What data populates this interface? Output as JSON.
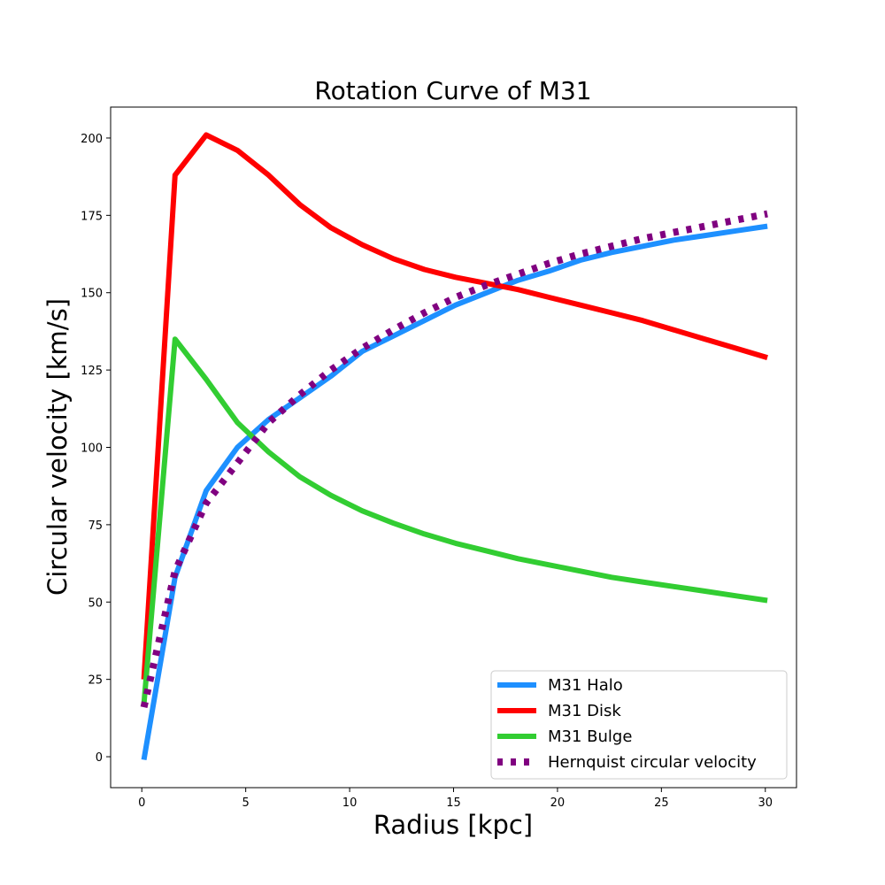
{
  "chart_data": {
    "type": "line",
    "title": "Rotation Curve of M31",
    "xlabel": "Radius [kpc]",
    "ylabel": "Circular velocity [km/s]",
    "xlim": [
      -1.5,
      31.5
    ],
    "ylim": [
      -10,
      210
    ],
    "xticks": [
      0,
      5,
      10,
      15,
      20,
      25,
      30
    ],
    "yticks": [
      0,
      25,
      50,
      75,
      100,
      125,
      150,
      175,
      200
    ],
    "grid": false,
    "legend_position": "lower-right",
    "x": [
      0.1,
      1.6,
      3.1,
      4.6,
      6.1,
      7.6,
      9.1,
      10.6,
      12.1,
      13.6,
      15.1,
      16.6,
      18.1,
      19.6,
      21.1,
      22.6,
      24.1,
      25.6,
      27.1,
      28.6,
      30.1
    ],
    "series": [
      {
        "name": "M31 Halo",
        "color": "#1e90ff",
        "style": "solid",
        "values": [
          -1,
          58,
          86,
          100,
          109,
          116,
          123,
          131,
          136,
          141,
          146,
          150,
          154,
          157,
          160.5,
          163,
          165,
          167,
          168.5,
          170,
          171.5
        ]
      },
      {
        "name": "M31 Disk",
        "color": "#ff0000",
        "style": "solid",
        "values": [
          25,
          188,
          201,
          196,
          188,
          178.5,
          171,
          165.5,
          161,
          157.5,
          155,
          153,
          151,
          148.5,
          146,
          143.5,
          141,
          138,
          135,
          132,
          129
        ]
      },
      {
        "name": "M31 Bulge",
        "color": "#32cd32",
        "style": "solid",
        "values": [
          17,
          135,
          122,
          108,
          98.5,
          90.5,
          84.5,
          79.5,
          75.5,
          72,
          69,
          66.5,
          64,
          62,
          60,
          58,
          56.5,
          55,
          53.5,
          52,
          50.5
        ]
      },
      {
        "name": "Hernquist circular velocity",
        "color": "#800080",
        "style": "dotted",
        "values": [
          16,
          60,
          82,
          95,
          108,
          117,
          125,
          132,
          138,
          143.5,
          148.5,
          152.5,
          156,
          159.5,
          162.5,
          165,
          167.5,
          169.5,
          171.5,
          173.5,
          175.5
        ]
      }
    ]
  }
}
